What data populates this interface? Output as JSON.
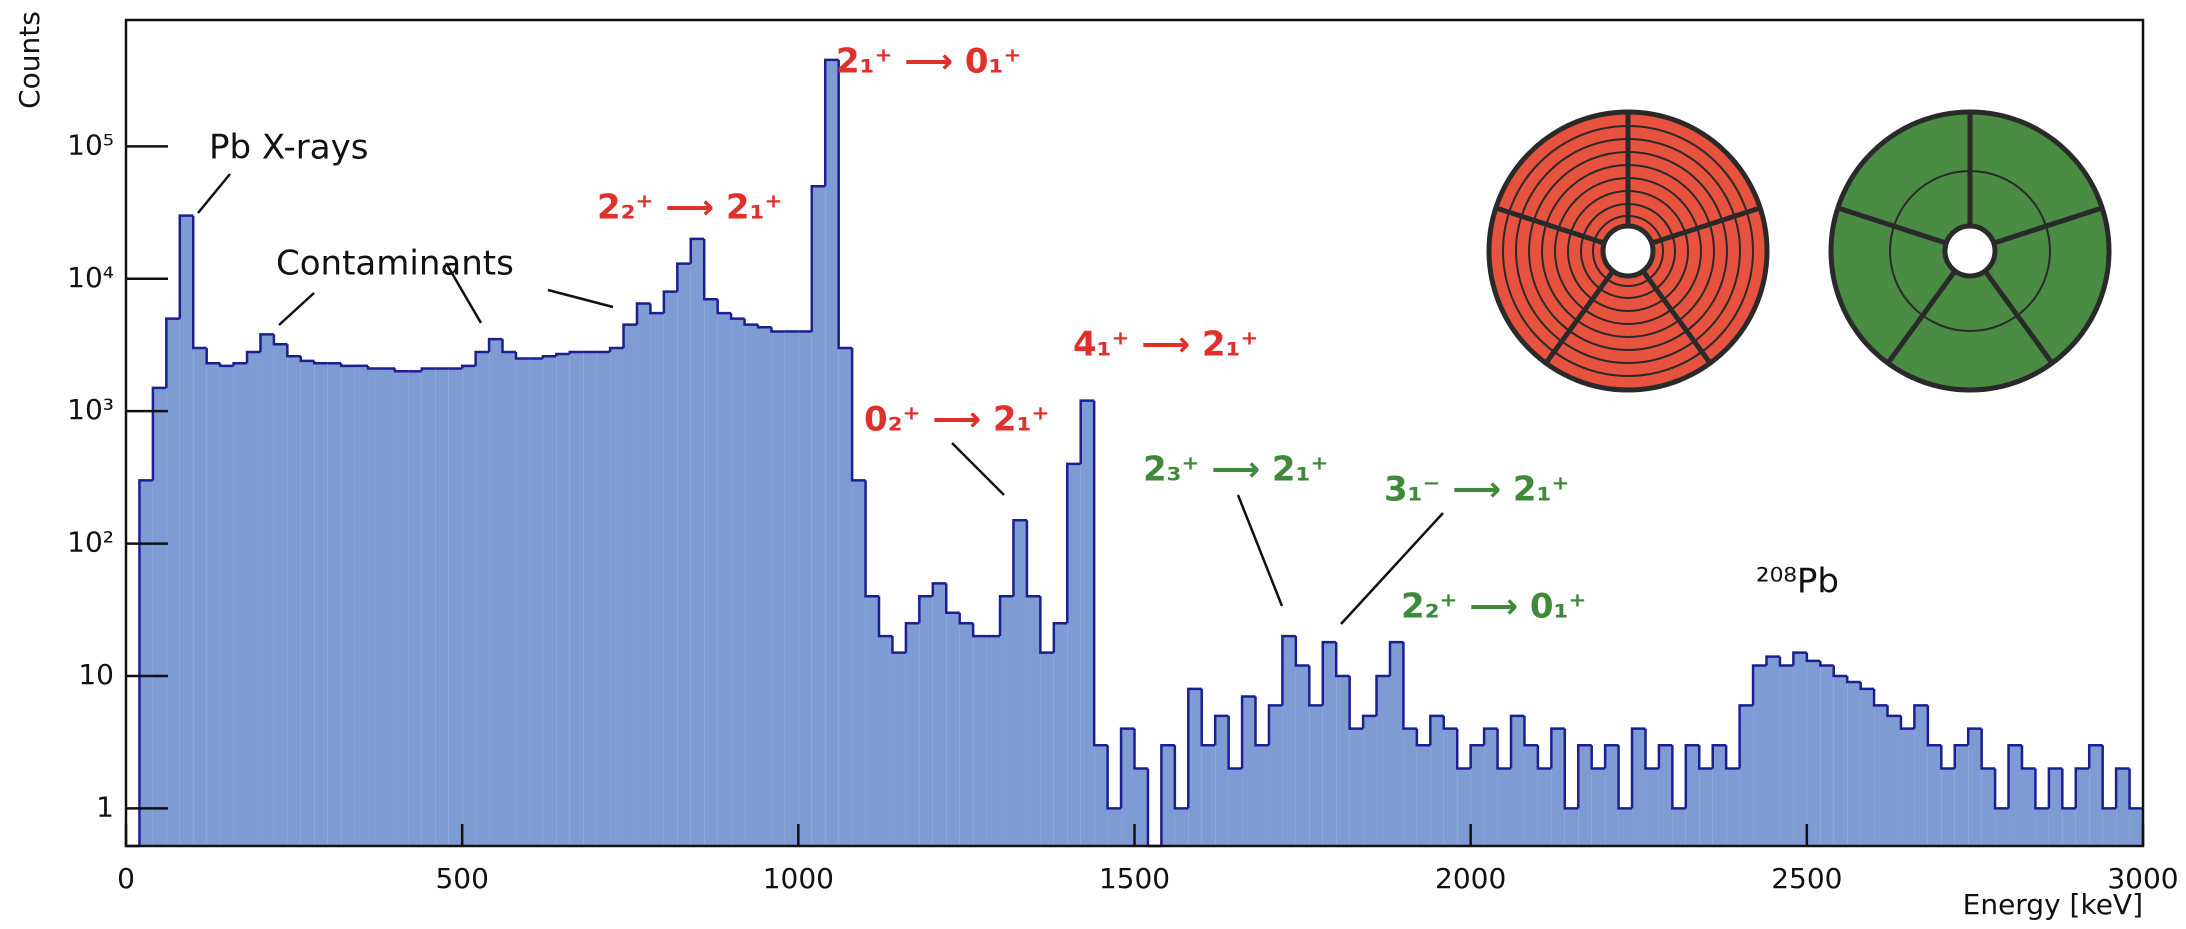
{
  "chart_data": {
    "type": "histogram",
    "xlabel": "Energy [keV]",
    "ylabel": "Counts",
    "log_y": true,
    "color": "#7f9bd4",
    "edgecolor": "#1c1f8f",
    "xlim": [
      0,
      3000
    ],
    "xticks": [
      0,
      500,
      1000,
      1500,
      2000,
      2500,
      3000
    ],
    "ylim": [
      0.52,
      900000
    ],
    "yticks": [
      1,
      10,
      {
        "value": 100,
        "label": "10²"
      },
      {
        "value": 1000,
        "label": "10³"
      },
      {
        "value": 10000,
        "label": "10⁴"
      },
      {
        "value": 100000,
        "label": "10⁵"
      }
    ],
    "bins": [
      0,
      20,
      40,
      60,
      80,
      100,
      120,
      140,
      160,
      180,
      200,
      220,
      240,
      260,
      280,
      300,
      320,
      340,
      360,
      380,
      400,
      420,
      440,
      460,
      480,
      500,
      520,
      540,
      560,
      580,
      600,
      620,
      640,
      660,
      680,
      700,
      720,
      740,
      760,
      780,
      800,
      820,
      840,
      860,
      880,
      900,
      920,
      940,
      960,
      980,
      1000,
      1020,
      1040,
      1060,
      1080,
      1100,
      1120,
      1140,
      1160,
      1180,
      1200,
      1220,
      1240,
      1260,
      1280,
      1300,
      1320,
      1340,
      1360,
      1380,
      1400,
      1420,
      1440,
      1460,
      1480,
      1500,
      1520,
      1540,
      1560,
      1580,
      1600,
      1620,
      1640,
      1660,
      1680,
      1700,
      1720,
      1740,
      1760,
      1780,
      1800,
      1820,
      1840,
      1860,
      1880,
      1900,
      1920,
      1940,
      1960,
      1980,
      2000,
      2020,
      2040,
      2060,
      2080,
      2100,
      2120,
      2140,
      2160,
      2180,
      2200,
      2220,
      2240,
      2260,
      2280,
      2300,
      2320,
      2340,
      2360,
      2380,
      2400,
      2420,
      2440,
      2460,
      2480,
      2500,
      2520,
      2540,
      2560,
      2580,
      2600,
      2620,
      2640,
      2660,
      2680,
      2700,
      2720,
      2740,
      2760,
      2780,
      2800,
      2820,
      2840,
      2860,
      2880,
      2900,
      2920,
      2940,
      2960,
      2980,
      3000
    ],
    "counts": [
      0,
      300,
      1500,
      5000,
      30000,
      3000,
      2300,
      2200,
      2300,
      2800,
      3800,
      3200,
      2600,
      2400,
      2300,
      2300,
      2200,
      2200,
      2100,
      2100,
      2000,
      2000,
      2100,
      2100,
      2100,
      2200,
      2800,
      3500,
      2800,
      2500,
      2500,
      2600,
      2700,
      2800,
      2800,
      2800,
      3000,
      4500,
      6500,
      5500,
      8000,
      13000,
      20000,
      7000,
      5500,
      5000,
      4500,
      4300,
      4000,
      4000,
      4000,
      50000,
      450000,
      3000,
      300,
      40,
      20,
      15,
      25,
      40,
      50,
      30,
      25,
      20,
      20,
      40,
      150,
      40,
      15,
      25,
      400,
      1200,
      3,
      1,
      4,
      2,
      0,
      3,
      1,
      8,
      3,
      5,
      2,
      7,
      3,
      6,
      20,
      12,
      6,
      18,
      10,
      4,
      5,
      10,
      18,
      4,
      3,
      5,
      4,
      2,
      3,
      4,
      2,
      5,
      3,
      2,
      4,
      1,
      3,
      2,
      3,
      1,
      4,
      2,
      3,
      1,
      3,
      2,
      3,
      2,
      6,
      12,
      14,
      12,
      15,
      13,
      12,
      10,
      9,
      8,
      6,
      5,
      4,
      6,
      3,
      2,
      3,
      4,
      2,
      1,
      3,
      2,
      1,
      2,
      1,
      2,
      3,
      1,
      2,
      1
    ],
    "annotations": [
      {
        "text": "Pb X-rays",
        "color": "#111111"
      },
      {
        "text": "Contaminants",
        "color": "#111111"
      },
      {
        "text": "2₁⁺ ⟶ 0₁⁺",
        "color": "#e0302c"
      },
      {
        "text": "2₂⁺ ⟶ 2₁⁺",
        "color": "#e0302c"
      },
      {
        "text": "4₁⁺ ⟶ 2₁⁺",
        "color": "#e0302c"
      },
      {
        "text": "0₂⁺ ⟶ 2₁⁺",
        "color": "#e0302c"
      },
      {
        "text": "2₃⁺ ⟶ 2₁⁺",
        "color": "#3f8a3a"
      },
      {
        "text": "3₁⁻ ⟶ 2₁⁺",
        "color": "#3f8a3a"
      },
      {
        "text": "2₂⁺ ⟶ 0₁⁺",
        "color": "#3f8a3a"
      },
      {
        "text": "²⁰⁸Pb",
        "color": "#111111"
      }
    ]
  }
}
